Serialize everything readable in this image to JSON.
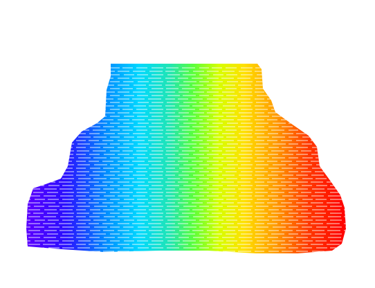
{
  "scene": {
    "background": "#ffffff",
    "colormap": "rainbow",
    "gradient_stops": [
      "#5a00ff",
      "#0036ff",
      "#00c8ff",
      "#19e6c8",
      "#3cff3c",
      "#c8ff00",
      "#ffe600",
      "#ffaa00",
      "#ff5a00",
      "#ff0000"
    ],
    "stripe_color": "#ffffff"
  }
}
